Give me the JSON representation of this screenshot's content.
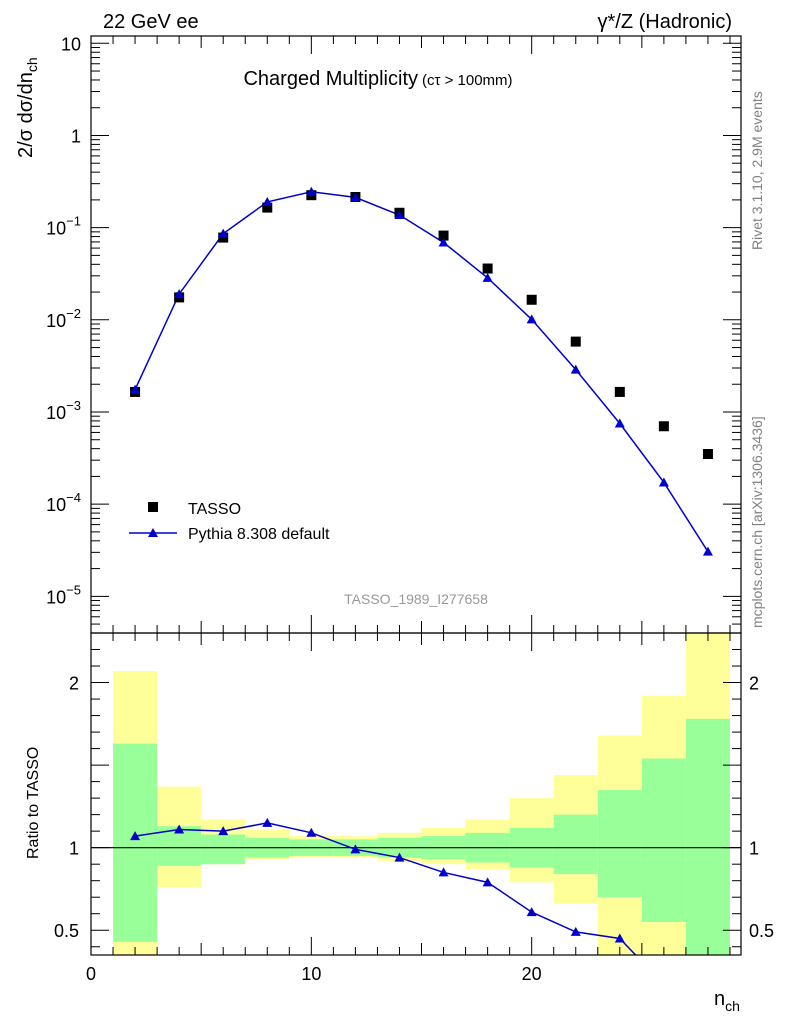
{
  "header": {
    "left": "22 GeV ee",
    "right": "γ*/Z (Hadronic)"
  },
  "side_text": {
    "version": "Rivet 3.1.10,  2.9M events",
    "site": "mcplots.cern.ch [arXiv:1306.3436]"
  },
  "chart_data": [
    {
      "type": "scatter",
      "panel": "main",
      "title": "Charged Multiplicity",
      "title_note": "(cτ > 100mm)",
      "watermark": "TASSO_1989_I277658",
      "ylabel": "2/σ dσ/dn_ch",
      "xlabel": "n_ch",
      "yscale": "log",
      "ylim": [
        4e-06,
        12
      ],
      "xlim": [
        0,
        29.5
      ],
      "yticks": [
        {
          "value": 10,
          "base": "10",
          "exp": ""
        },
        {
          "value": 1,
          "base": "1",
          "exp": ""
        },
        {
          "value": 0.1,
          "base": "10",
          "exp": "−1"
        },
        {
          "value": 0.01,
          "base": "10",
          "exp": "−2"
        },
        {
          "value": 0.001,
          "base": "10",
          "exp": "−3"
        },
        {
          "value": 0.0001,
          "base": "10",
          "exp": "−4"
        },
        {
          "value": 1e-05,
          "base": "10",
          "exp": "−5"
        }
      ],
      "legend_position": "bottom-left",
      "series": [
        {
          "name": "TASSO",
          "color": "#000000",
          "marker": "square",
          "x": [
            2,
            4,
            6,
            8,
            10,
            12,
            14,
            16,
            18,
            20,
            22,
            24,
            26,
            28
          ],
          "y": [
            0.00165,
            0.0175,
            0.078,
            0.165,
            0.225,
            0.215,
            0.145,
            0.082,
            0.036,
            0.0165,
            0.0058,
            0.00165,
            0.0007,
            0.00035
          ]
        },
        {
          "name": "Pythia 8.308 default",
          "color": "#0000cc",
          "marker": "triangle",
          "x": [
            2,
            4,
            6,
            8,
            10,
            12,
            14,
            16,
            18,
            20,
            22,
            24,
            26,
            28
          ],
          "y": [
            0.00175,
            0.019,
            0.086,
            0.19,
            0.245,
            0.213,
            0.137,
            0.069,
            0.0285,
            0.0101,
            0.00288,
            0.00075,
            0.000172,
            3.05e-05
          ]
        }
      ]
    },
    {
      "type": "line",
      "panel": "ratio",
      "ylabel": "Ratio to TASSO",
      "xlabel": "n_ch",
      "ylim": [
        0.35,
        2.3
      ],
      "xlim": [
        0,
        29.5
      ],
      "xticks": [
        0,
        10,
        20
      ],
      "yticks": [
        0.5,
        1,
        2
      ],
      "bands": {
        "inner_color": "#99ff99",
        "outer_color": "#ffff99",
        "bins": [
          {
            "x0": 1,
            "x1": 3,
            "inner": [
              0.43,
              1.63
            ],
            "outer": [
              0.2,
              2.07
            ]
          },
          {
            "x0": 3,
            "x1": 5,
            "inner": [
              0.89,
              1.13
            ],
            "outer": [
              0.76,
              1.37
            ]
          },
          {
            "x0": 5,
            "x1": 7,
            "inner": [
              0.9,
              1.08
            ],
            "outer": [
              0.9,
              1.17
            ]
          },
          {
            "x0": 7,
            "x1": 9,
            "inner": [
              0.94,
              1.06
            ],
            "outer": [
              0.93,
              1.11
            ]
          },
          {
            "x0": 9,
            "x1": 11,
            "inner": [
              0.95,
              1.05
            ],
            "outer": [
              0.94,
              1.07
            ]
          },
          {
            "x0": 11,
            "x1": 13,
            "inner": [
              0.95,
              1.05
            ],
            "outer": [
              0.94,
              1.07
            ]
          },
          {
            "x0": 13,
            "x1": 15,
            "inner": [
              0.94,
              1.06
            ],
            "outer": [
              0.92,
              1.09
            ]
          },
          {
            "x0": 15,
            "x1": 17,
            "inner": [
              0.93,
              1.07
            ],
            "outer": [
              0.9,
              1.12
            ]
          },
          {
            "x0": 17,
            "x1": 19,
            "inner": [
              0.91,
              1.09
            ],
            "outer": [
              0.87,
              1.17
            ]
          },
          {
            "x0": 19,
            "x1": 21,
            "inner": [
              0.88,
              1.12
            ],
            "outer": [
              0.79,
              1.3
            ]
          },
          {
            "x0": 21,
            "x1": 23,
            "inner": [
              0.84,
              1.2
            ],
            "outer": [
              0.66,
              1.44
            ]
          },
          {
            "x0": 23,
            "x1": 25,
            "inner": [
              0.7,
              1.35
            ],
            "outer": [
              0.28,
              1.68
            ]
          },
          {
            "x0": 25,
            "x1": 27,
            "inner": [
              0.55,
              1.54
            ],
            "outer": [
              0.2,
              1.92
            ]
          },
          {
            "x0": 27,
            "x1": 29,
            "inner": [
              0.3,
              1.78
            ],
            "outer": [
              0.2,
              2.3
            ]
          }
        ]
      },
      "series": [
        {
          "name": "Pythia 8.308 default",
          "color": "#0000cc",
          "marker": "triangle",
          "x": [
            2,
            4,
            6,
            8,
            10,
            12,
            14,
            16,
            18,
            20,
            22,
            24
          ],
          "y": [
            1.07,
            1.11,
            1.1,
            1.15,
            1.09,
            0.99,
            0.94,
            0.85,
            0.79,
            0.61,
            0.49,
            0.45
          ]
        }
      ]
    }
  ]
}
